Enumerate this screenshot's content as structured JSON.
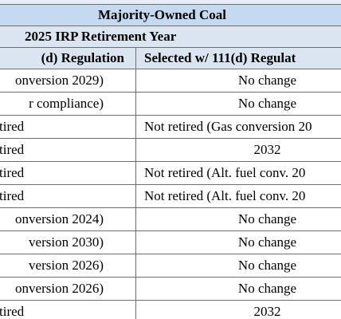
{
  "table": {
    "title": "Majority-Owned Coal",
    "subtitle": "2025 IRP Retirement Year",
    "columns": [
      "(d) Regulation",
      "Selected w/ 111(d) Regulat"
    ],
    "rows": [
      [
        "onversion 2029)",
        "No change"
      ],
      [
        "r compliance)",
        "No change"
      ],
      [
        "tired",
        "Not retired (Gas conversion 20"
      ],
      [
        "tired",
        "2032"
      ],
      [
        "tired",
        "Not retired (Alt. fuel conv. 20"
      ],
      [
        "tired",
        "Not retired (Alt. fuel conv. 20"
      ],
      [
        "onversion 2024)",
        "No change"
      ],
      [
        "version 2030)",
        "No change"
      ],
      [
        "version 2026)",
        "No change"
      ],
      [
        "onversion 2026)",
        "No change"
      ],
      [
        "tired",
        "2032"
      ]
    ]
  },
  "colors": {
    "header_main": "#c5d9f1",
    "header_sub": "#dbe5f1",
    "grid": "#6f6f6f"
  }
}
